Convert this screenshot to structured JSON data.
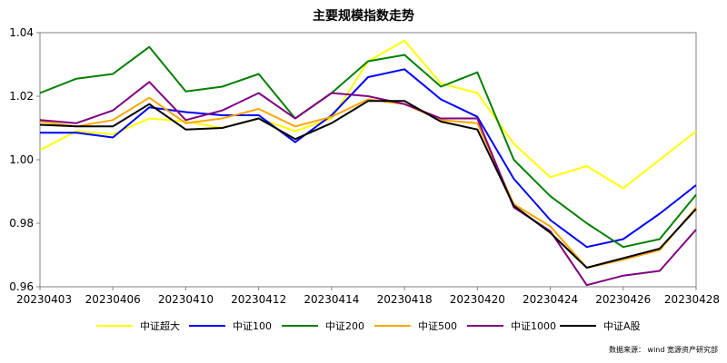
{
  "chart_data": {
    "type": "line",
    "title": "主要规模指数走势",
    "x": [
      "20230403",
      "20230404",
      "20230406",
      "20230407",
      "20230410",
      "20230411",
      "20230412",
      "20230413",
      "20230414",
      "20230417",
      "20230418",
      "20230419",
      "20230420",
      "20230421",
      "20230424",
      "20230425",
      "20230426",
      "20230427",
      "20230428"
    ],
    "x_tick_labels": [
      "20230403",
      "20230406",
      "20230410",
      "20230412",
      "20230414",
      "20230418",
      "20230420",
      "20230424",
      "20230426",
      "20230428"
    ],
    "ylim": [
      0.96,
      1.04
    ],
    "y_ticks": [
      "0.96",
      "0.98",
      "1.00",
      "1.02",
      "1.04"
    ],
    "series": [
      {
        "name": "中证超大",
        "color": "#ffff00",
        "values": [
          1.003,
          1.009,
          1.008,
          1.013,
          1.012,
          1.01,
          1.013,
          1.009,
          1.013,
          1.031,
          1.0375,
          1.024,
          1.021,
          1.005,
          0.9945,
          0.998,
          0.991,
          1.0,
          1.009
        ]
      },
      {
        "name": "中证100",
        "color": "#0000ff",
        "values": [
          1.0085,
          1.0085,
          1.007,
          1.0165,
          1.015,
          1.014,
          1.014,
          1.0055,
          1.014,
          1.026,
          1.0285,
          1.019,
          1.0135,
          0.994,
          0.981,
          0.9725,
          0.975,
          0.983,
          0.992
        ]
      },
      {
        "name": "中证200",
        "color": "#008000",
        "values": [
          1.021,
          1.0255,
          1.027,
          1.0355,
          1.0215,
          1.023,
          1.027,
          1.013,
          1.021,
          1.031,
          1.033,
          1.023,
          1.0275,
          1.0,
          0.9885,
          0.98,
          0.9725,
          0.975,
          0.989
        ]
      },
      {
        "name": "中证500",
        "color": "#ffa500",
        "values": [
          1.012,
          1.0105,
          1.0125,
          1.0195,
          1.0115,
          1.013,
          1.016,
          1.0105,
          1.0135,
          1.019,
          1.0175,
          1.0125,
          1.0115,
          0.986,
          0.979,
          0.966,
          0.9685,
          0.9715,
          0.985
        ]
      },
      {
        "name": "中证1000",
        "color": "#800080",
        "values": [
          1.0125,
          1.0115,
          1.0155,
          1.0245,
          1.0125,
          1.0155,
          1.021,
          1.013,
          1.021,
          1.02,
          1.0175,
          1.013,
          1.013,
          0.985,
          0.9775,
          0.9605,
          0.9635,
          0.965,
          0.978
        ]
      },
      {
        "name": "中证A股",
        "color": "#000000",
        "values": [
          1.011,
          1.0105,
          1.0105,
          1.0175,
          1.0095,
          1.01,
          1.013,
          1.0065,
          1.0115,
          1.0185,
          1.0185,
          1.012,
          1.0095,
          0.9855,
          0.977,
          0.966,
          0.969,
          0.972,
          0.9845
        ]
      }
    ],
    "grid": false,
    "legend_position": "bottom",
    "source_note": "数据来源：  wind 宽源资产研究部"
  }
}
